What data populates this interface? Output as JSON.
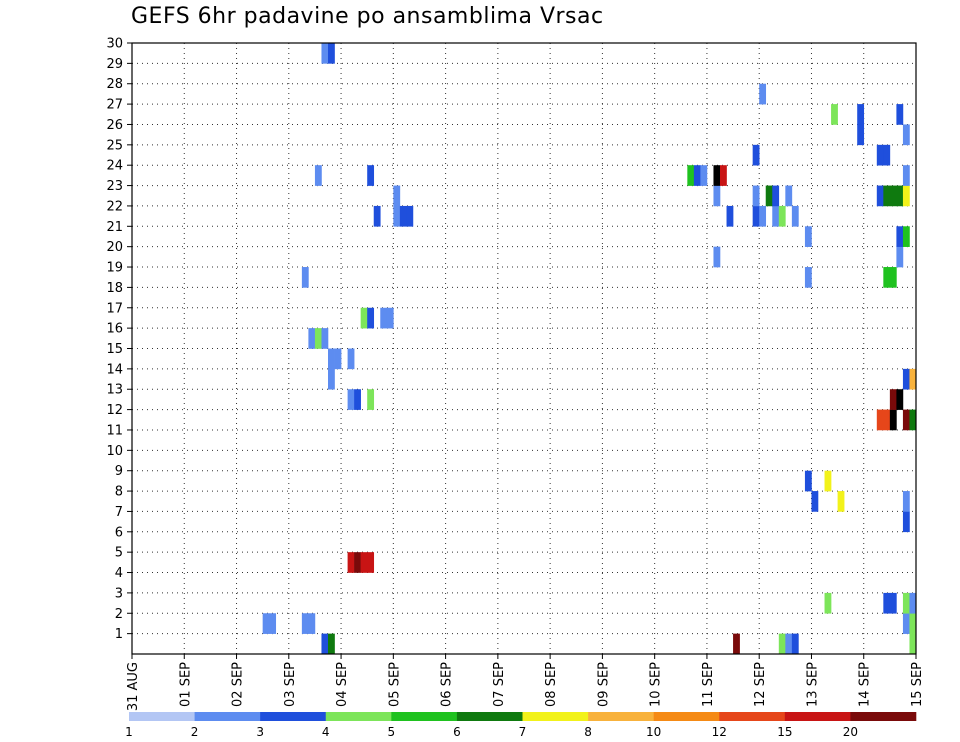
{
  "chart_data": {
    "type": "heatmap",
    "title": "GEFS 6hr padavine po ansamblima Vrsac",
    "xlabel": "",
    "ylabel": "",
    "x_tick_labels": [
      "31 AUG",
      "01 SEP",
      "02 SEP",
      "03 SEP",
      "04 SEP",
      "05 SEP",
      "06 SEP",
      "07 SEP",
      "08 SEP",
      "09 SEP",
      "10 SEP",
      "11 SEP",
      "12 SEP",
      "13 SEP",
      "14 SEP",
      "15 SEP"
    ],
    "y_tick_labels": [
      1,
      2,
      3,
      4,
      5,
      6,
      7,
      8,
      9,
      10,
      11,
      12,
      13,
      14,
      15,
      16,
      17,
      18,
      19,
      20,
      21,
      22,
      23,
      24,
      25,
      26,
      27,
      28,
      29,
      30
    ],
    "xlim": [
      0,
      60
    ],
    "ylim": [
      0,
      30
    ],
    "grid": true,
    "legend_placement": "bottom",
    "legend": {
      "labels": [
        "1",
        "2",
        "3",
        "4",
        "5",
        "6",
        "7",
        "8",
        "10",
        "12",
        "15",
        "20"
      ],
      "colors": [
        "#b3c6f4",
        "#5d8cf0",
        "#1f4fdc",
        "#7de55a",
        "#1fc21f",
        "#0f7a0f",
        "#f2f21a",
        "#f8b23c",
        "#f58a15",
        "#e6461a",
        "#c81414",
        "#7a0a0a"
      ]
    },
    "cells": [
      [
        14.5,
        0,
        2
      ],
      [
        15,
        0,
        5
      ],
      [
        46,
        0,
        11
      ],
      [
        49.5,
        0,
        3
      ],
      [
        50,
        0,
        1
      ],
      [
        50.5,
        0,
        2
      ],
      [
        59.5,
        0,
        3
      ],
      [
        10,
        1,
        1
      ],
      [
        10.5,
        1,
        1
      ],
      [
        13,
        1,
        1
      ],
      [
        13.5,
        1,
        1
      ],
      [
        59,
        1,
        1
      ],
      [
        59.5,
        1,
        3
      ],
      [
        53,
        2,
        3
      ],
      [
        57.5,
        2,
        2
      ],
      [
        58,
        2,
        2
      ],
      [
        59,
        2,
        3
      ],
      [
        59.5,
        2,
        1
      ],
      [
        16.5,
        4,
        10
      ],
      [
        17,
        4,
        11
      ],
      [
        17.5,
        4,
        10
      ],
      [
        18,
        4,
        10
      ],
      [
        59,
        6,
        2
      ],
      [
        52,
        7,
        2
      ],
      [
        54,
        7,
        6
      ],
      [
        59,
        7,
        1
      ],
      [
        51.5,
        8,
        2
      ],
      [
        53,
        8,
        6
      ],
      [
        57,
        11,
        9
      ],
      [
        57.5,
        11,
        9
      ],
      [
        58,
        11,
        12
      ],
      [
        59,
        11,
        11
      ],
      [
        59.5,
        11,
        5
      ],
      [
        58,
        12,
        11
      ],
      [
        58.5,
        12,
        12
      ],
      [
        16.5,
        12,
        1
      ],
      [
        17,
        12,
        2
      ],
      [
        18,
        12,
        3
      ],
      [
        59,
        13,
        2
      ],
      [
        59.5,
        13,
        7
      ],
      [
        15,
        13,
        1
      ],
      [
        15,
        14,
        1
      ],
      [
        15.5,
        14,
        1
      ],
      [
        16.5,
        14,
        1
      ],
      [
        13.5,
        15,
        1
      ],
      [
        14,
        15,
        3
      ],
      [
        14.5,
        15,
        1
      ],
      [
        17.5,
        16,
        3
      ],
      [
        18,
        16,
        2
      ],
      [
        19,
        16,
        1
      ],
      [
        19.5,
        16,
        1
      ],
      [
        13,
        18,
        1
      ],
      [
        51.5,
        18,
        1
      ],
      [
        57.5,
        18,
        4
      ],
      [
        58,
        18,
        4
      ],
      [
        44.5,
        19,
        1
      ],
      [
        58.5,
        19,
        1
      ],
      [
        51.5,
        20,
        1
      ],
      [
        58.5,
        20,
        2
      ],
      [
        59,
        20,
        4
      ],
      [
        18.5,
        21,
        2
      ],
      [
        20,
        21,
        1
      ],
      [
        20.5,
        21,
        2
      ],
      [
        21,
        21,
        2
      ],
      [
        45.5,
        21,
        2
      ],
      [
        47.5,
        21,
        2
      ],
      [
        48,
        21,
        1
      ],
      [
        49,
        21,
        1
      ],
      [
        49.5,
        21,
        3
      ],
      [
        50.5,
        21,
        1
      ],
      [
        20,
        22,
        1
      ],
      [
        44.5,
        22,
        1
      ],
      [
        47.5,
        22,
        1
      ],
      [
        48.5,
        22,
        5
      ],
      [
        49,
        22,
        2
      ],
      [
        50,
        22,
        1
      ],
      [
        57,
        22,
        2
      ],
      [
        57.5,
        22,
        5
      ],
      [
        58,
        22,
        5
      ],
      [
        58.5,
        22,
        5
      ],
      [
        59,
        22,
        6
      ],
      [
        14,
        23,
        1
      ],
      [
        18,
        23,
        2
      ],
      [
        42.5,
        23,
        4
      ],
      [
        43,
        23,
        2
      ],
      [
        43.5,
        23,
        1
      ],
      [
        44.5,
        23,
        12
      ],
      [
        45,
        23,
        10
      ],
      [
        59,
        23,
        1
      ],
      [
        47.5,
        24,
        2
      ],
      [
        57,
        24,
        2
      ],
      [
        57.5,
        24,
        2
      ],
      [
        55.5,
        25,
        2
      ],
      [
        59,
        25,
        1
      ],
      [
        53.5,
        26,
        3
      ],
      [
        55.5,
        26,
        2
      ],
      [
        58.5,
        26,
        2
      ],
      [
        48,
        27,
        1
      ],
      [
        14.5,
        29,
        1
      ],
      [
        15,
        29,
        2
      ]
    ]
  }
}
